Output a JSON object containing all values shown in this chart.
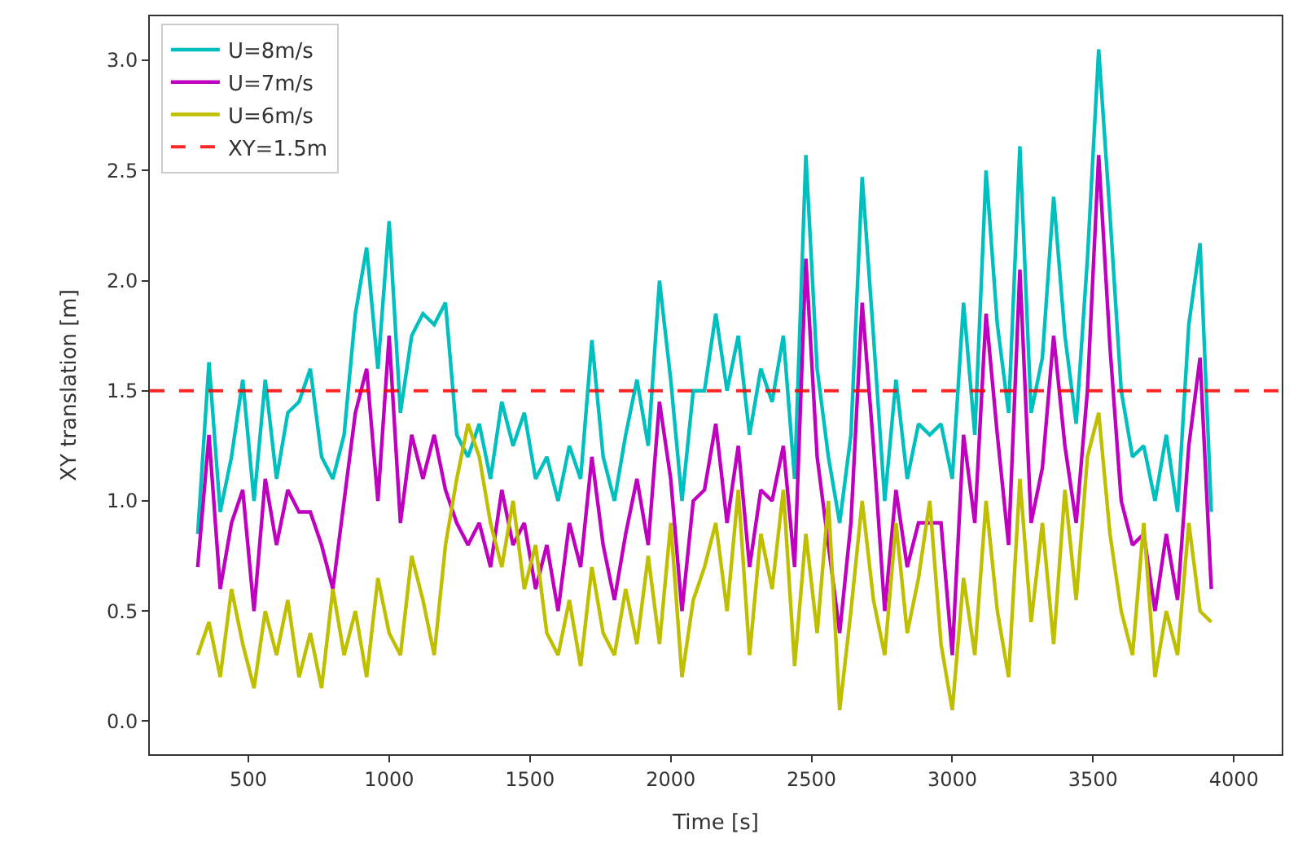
{
  "chart_data": {
    "type": "line",
    "xlabel": "Time [s]",
    "ylabel": "XY translation [m]",
    "x": [
      320,
      360,
      400,
      440,
      480,
      520,
      560,
      600,
      640,
      680,
      720,
      760,
      800,
      840,
      880,
      920,
      960,
      1000,
      1040,
      1080,
      1120,
      1160,
      1200,
      1240,
      1280,
      1320,
      1360,
      1400,
      1440,
      1480,
      1520,
      1560,
      1600,
      1640,
      1680,
      1720,
      1760,
      1800,
      1840,
      1880,
      1920,
      1960,
      2000,
      2040,
      2080,
      2120,
      2160,
      2200,
      2240,
      2280,
      2320,
      2360,
      2400,
      2440,
      2480,
      2520,
      2560,
      2600,
      2640,
      2680,
      2720,
      2760,
      2800,
      2840,
      2880,
      2920,
      2960,
      3000,
      3040,
      3080,
      3120,
      3160,
      3200,
      3240,
      3280,
      3320,
      3360,
      3400,
      3440,
      3480,
      3520,
      3560,
      3600,
      3640,
      3680,
      3720,
      3760,
      3800,
      3840,
      3880,
      3920
    ],
    "series": [
      {
        "name": "U=8m/s",
        "color": "#00bfbf",
        "values": [
          0.85,
          1.63,
          0.95,
          1.2,
          1.55,
          1.0,
          1.55,
          1.1,
          1.4,
          1.45,
          1.6,
          1.2,
          1.1,
          1.3,
          1.85,
          2.15,
          1.6,
          2.27,
          1.4,
          1.75,
          1.85,
          1.8,
          1.9,
          1.3,
          1.2,
          1.35,
          1.1,
          1.45,
          1.25,
          1.4,
          1.1,
          1.2,
          1.0,
          1.25,
          1.1,
          1.73,
          1.2,
          1.0,
          1.3,
          1.55,
          1.25,
          2.0,
          1.55,
          1.0,
          1.5,
          1.5,
          1.85,
          1.5,
          1.75,
          1.3,
          1.6,
          1.45,
          1.75,
          1.1,
          2.57,
          1.6,
          1.2,
          0.9,
          1.3,
          2.47,
          1.75,
          1.0,
          1.55,
          1.1,
          1.35,
          1.3,
          1.35,
          1.1,
          1.9,
          1.3,
          2.5,
          1.8,
          1.4,
          2.61,
          1.4,
          1.65,
          2.38,
          1.75,
          1.35,
          2.1,
          3.05,
          2.3,
          1.5,
          1.2,
          1.25,
          1.0,
          1.3,
          0.95,
          1.8,
          2.17,
          0.95
        ]
      },
      {
        "name": "U=7m/s",
        "color": "#bf00bf",
        "values": [
          0.7,
          1.3,
          0.6,
          0.9,
          1.05,
          0.5,
          1.1,
          0.8,
          1.05,
          0.95,
          0.95,
          0.8,
          0.6,
          1.0,
          1.4,
          1.6,
          1.0,
          1.75,
          0.9,
          1.3,
          1.1,
          1.3,
          1.05,
          0.9,
          0.8,
          0.9,
          0.7,
          1.05,
          0.8,
          0.9,
          0.6,
          0.8,
          0.5,
          0.9,
          0.7,
          1.2,
          0.8,
          0.55,
          0.85,
          1.1,
          0.8,
          1.45,
          1.1,
          0.5,
          1.0,
          1.05,
          1.35,
          0.9,
          1.25,
          0.7,
          1.05,
          1.0,
          1.25,
          0.7,
          2.1,
          1.2,
          0.8,
          0.4,
          0.9,
          1.9,
          1.25,
          0.5,
          1.05,
          0.7,
          0.9,
          0.9,
          0.9,
          0.3,
          1.3,
          0.9,
          1.85,
          1.3,
          0.8,
          2.05,
          0.9,
          1.15,
          1.75,
          1.25,
          0.9,
          1.5,
          2.57,
          1.7,
          1.0,
          0.8,
          0.85,
          0.5,
          0.85,
          0.55,
          1.25,
          1.65,
          0.6
        ]
      },
      {
        "name": "U=6m/s",
        "color": "#bfbf00",
        "values": [
          0.3,
          0.45,
          0.2,
          0.6,
          0.35,
          0.15,
          0.5,
          0.3,
          0.55,
          0.2,
          0.4,
          0.15,
          0.6,
          0.3,
          0.5,
          0.2,
          0.65,
          0.4,
          0.3,
          0.75,
          0.55,
          0.3,
          0.8,
          1.1,
          1.35,
          1.2,
          0.9,
          0.7,
          1.0,
          0.6,
          0.8,
          0.4,
          0.3,
          0.55,
          0.25,
          0.7,
          0.4,
          0.3,
          0.6,
          0.35,
          0.75,
          0.35,
          0.9,
          0.2,
          0.55,
          0.7,
          0.9,
          0.5,
          1.05,
          0.3,
          0.85,
          0.6,
          1.05,
          0.25,
          0.85,
          0.4,
          1.0,
          0.05,
          0.5,
          1.0,
          0.55,
          0.3,
          0.9,
          0.4,
          0.65,
          1.0,
          0.35,
          0.05,
          0.65,
          0.3,
          1.0,
          0.5,
          0.2,
          1.1,
          0.45,
          0.9,
          0.35,
          1.05,
          0.55,
          1.2,
          1.4,
          0.85,
          0.5,
          0.3,
          0.9,
          0.2,
          0.5,
          0.3,
          0.9,
          0.5,
          0.45
        ]
      }
    ],
    "ref_lines": [
      {
        "axis": "y",
        "value": 1.5,
        "label": "XY=1.5m",
        "color": "#ff0000",
        "line_style": "dashed"
      }
    ],
    "xlim": [
      150,
      4170
    ],
    "xticks": [
      500,
      1000,
      1500,
      2000,
      2500,
      3000,
      3500,
      4000
    ],
    "ylim": [
      -0.15,
      3.2
    ],
    "yticks": [
      {
        "value": 0,
        "label": "0.0"
      },
      {
        "value": 0.5,
        "label": "0.5"
      },
      {
        "value": 1,
        "label": "1.0"
      },
      {
        "value": 1.5,
        "label": "1.5"
      },
      {
        "value": 2,
        "label": "2.0"
      },
      {
        "value": 2.5,
        "label": "2.5"
      },
      {
        "value": 3,
        "label": "3.0"
      }
    ],
    "legend": "top left",
    "marker": "none",
    "line_style": "solid"
  }
}
